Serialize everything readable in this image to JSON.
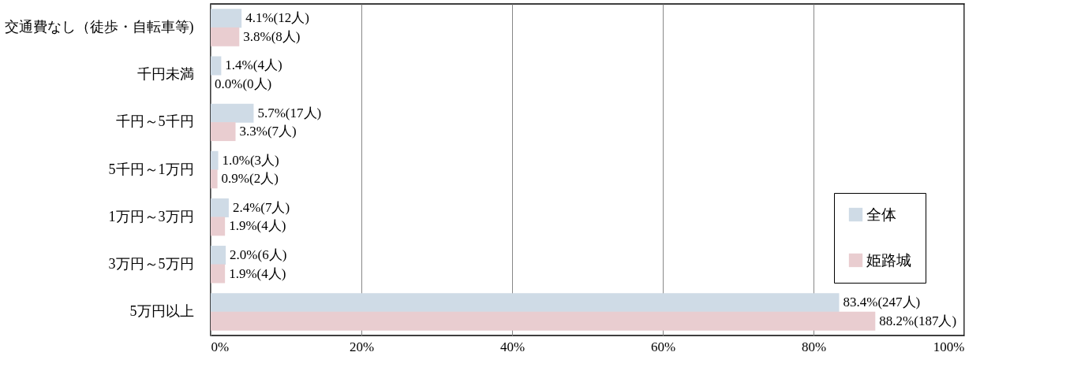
{
  "chart_data": {
    "type": "bar",
    "orientation": "horizontal",
    "categories": [
      "交通費なし（徒歩・自転車等)",
      "千円未満",
      "千円～5千円",
      "5千円～1万円",
      "1万円～3万円",
      "3万円～5万円",
      "5万円以上"
    ],
    "series": [
      {
        "name": "全体",
        "color": "#cfdbe6",
        "values": [
          4.1,
          1.4,
          5.7,
          1.0,
          2.4,
          2.0,
          83.4
        ],
        "value_labels": [
          "4.1%(12人)",
          "1.4%(4人)",
          "5.7%(17人)",
          "1.0%(3人)",
          "2.4%(7人)",
          "2.0%(6人)",
          "83.4%(247人)"
        ]
      },
      {
        "name": "姫路城",
        "color": "#e9cdd0",
        "values": [
          3.8,
          0.0,
          3.3,
          0.9,
          1.9,
          1.9,
          88.2
        ],
        "value_labels": [
          "3.8%(8人)",
          "0.0%(0人)",
          "3.3%(7人)",
          "0.9%(2人)",
          "1.9%(4人)",
          "1.9%(4人)",
          "88.2%(187人)"
        ]
      }
    ],
    "xlim": [
      0,
      100
    ],
    "xticks": [
      {
        "value": 0,
        "label": "0%"
      },
      {
        "value": 20,
        "label": "20%"
      },
      {
        "value": 40,
        "label": "40%"
      },
      {
        "value": 60,
        "label": "60%"
      },
      {
        "value": 80,
        "label": "80%"
      },
      {
        "value": 100,
        "label": "100%"
      }
    ],
    "grid": "x",
    "legend": "bottom right"
  }
}
